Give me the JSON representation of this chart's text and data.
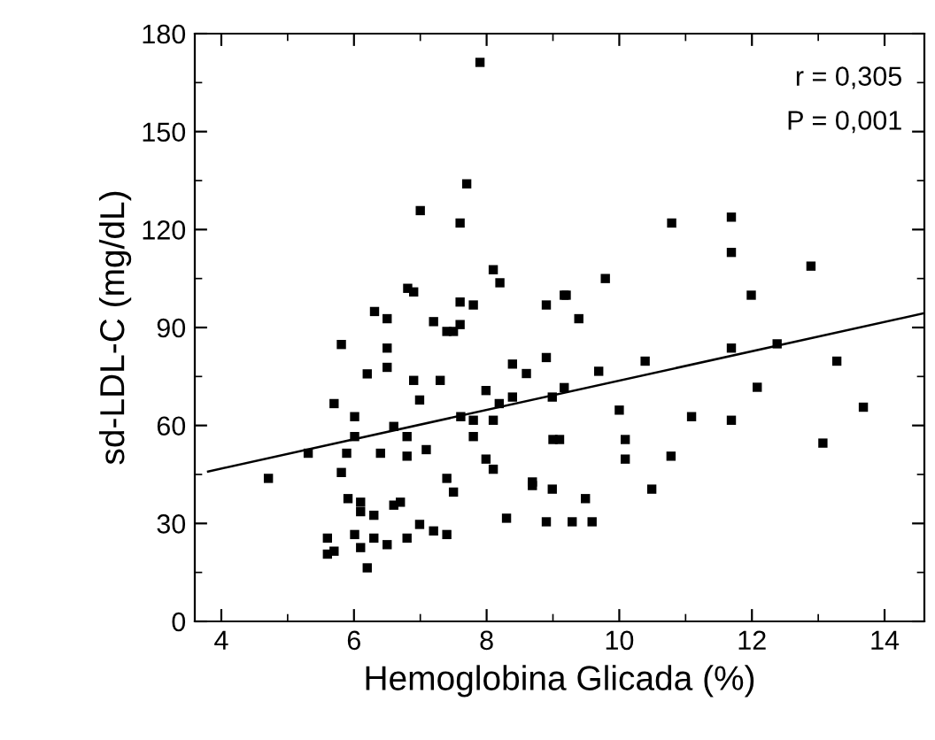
{
  "chart_data": {
    "type": "scatter",
    "xlabel": "Hemoglobina Glicada (%)",
    "ylabel": "sd-LDL-C (mg/dL)",
    "annotations": [
      "r = 0,305",
      "P = 0,001"
    ],
    "xlim": [
      3.6,
      14.6
    ],
    "xticks": [
      4,
      6,
      8,
      10,
      12,
      14
    ],
    "ylim": [
      0,
      180
    ],
    "yticks": [
      0,
      30,
      60,
      90,
      120,
      150,
      180
    ],
    "grid": false,
    "series": [
      {
        "color": "#000000",
        "marker": "square",
        "x": [
          7.9,
          7.7,
          7.0,
          7.6,
          8.1,
          8.2,
          6.81,
          6.9,
          9.17,
          8.9,
          7.6,
          7.8,
          6.31,
          6.5,
          7.2,
          7.6,
          7.4,
          7.5,
          5.81,
          6.5,
          8.9,
          10.79,
          11.69,
          11.69,
          12.89,
          9.79,
          9.2,
          9.39,
          11.99,
          11.69,
          12.38,
          6.2,
          6.5,
          6.9,
          7.3,
          8.39,
          8.6,
          6.99,
          7.99,
          8.39,
          8.19,
          8.99,
          9.17,
          5.7,
          6.01,
          6.6,
          7.61,
          7.8,
          8.1,
          6.01,
          6.8,
          7.8,
          5.31,
          5.89,
          6.4,
          6.8,
          7.09,
          7.99,
          8.1,
          4.71,
          5.81,
          7.4,
          7.5,
          8.69,
          8.69,
          8.99,
          5.91,
          6.1,
          6.1,
          6.3,
          6.6,
          6.7,
          8.3,
          8.9,
          5.6,
          5.6,
          5.7,
          6.01,
          6.1,
          6.2,
          6.3,
          6.5,
          6.8,
          6.99,
          7.2,
          7.4,
          9.69,
          10.39,
          10.0,
          11.09,
          11.69,
          12.08,
          13.28,
          13.68,
          9.0,
          9.1,
          10.09,
          10.09,
          10.78,
          13.07,
          9.49,
          10.49,
          9.29,
          9.59
        ],
        "values": [
          171.2,
          134,
          125.8,
          122,
          107.7,
          103.7,
          102,
          100.9,
          99.9,
          96.9,
          97.8,
          96.9,
          94.9,
          92.7,
          91.8,
          90.9,
          88.8,
          88.8,
          84.8,
          83.7,
          80.8,
          122,
          123.8,
          113,
          108.8,
          105,
          99.9,
          92.7,
          99.9,
          83.7,
          85,
          75.8,
          77.8,
          73.8,
          73.8,
          78.8,
          75.9,
          67.8,
          70.7,
          68.7,
          66.7,
          68.7,
          71.6,
          66.7,
          62.7,
          59.7,
          62.7,
          61.6,
          61.6,
          56.6,
          56.6,
          56.6,
          51.5,
          51.5,
          51.5,
          50.6,
          52.6,
          49.7,
          46.6,
          43.8,
          45.6,
          43.8,
          39.6,
          42.7,
          41.6,
          40.5,
          37.6,
          36.5,
          33.6,
          32.5,
          35.6,
          36.5,
          31.6,
          30.5,
          25.5,
          20.6,
          21.5,
          26.6,
          22.6,
          16.4,
          25.5,
          23.5,
          25.5,
          29.7,
          27.7,
          26.6,
          76.6,
          79.7,
          64.7,
          62.7,
          61.6,
          71.7,
          79.7,
          65.6,
          55.7,
          55.7,
          55.7,
          49.7,
          50.6,
          54.6,
          37.6,
          40.5,
          30.5,
          30.5
        ]
      },
      {
        "type": "line",
        "color": "#000000",
        "marker": "none",
        "line_style": "solid",
        "x": [
          3.8,
          14.6
        ],
        "values": [
          45.9,
          94.4
        ]
      }
    ]
  }
}
